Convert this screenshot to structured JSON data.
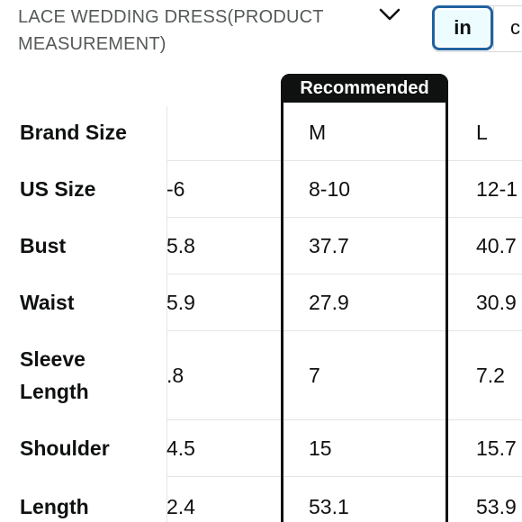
{
  "header": {
    "title": "LACE WEDDING DRESS(PRODUCT MEASUREMENT)",
    "dropdown_icon": "chevron-down-icon"
  },
  "unit_toggle": {
    "options": [
      {
        "label": "in",
        "selected": true
      },
      {
        "label": "c",
        "selected": false
      }
    ]
  },
  "table": {
    "recommended_label": "Recommended",
    "rows": [
      {
        "label": "Brand Size",
        "cells": [
          "",
          "M",
          "L"
        ]
      },
      {
        "label": "US Size",
        "cells": [
          "-6",
          "8-10",
          "12-1"
        ]
      },
      {
        "label": "Bust",
        "cells": [
          "5.8",
          "37.7",
          "40.7"
        ]
      },
      {
        "label": "Waist",
        "cells": [
          "5.9",
          "27.9",
          "30.9"
        ]
      },
      {
        "label": "Sleeve Length",
        "cells": [
          ".8",
          "7",
          "7.2"
        ]
      },
      {
        "label": "Shoulder",
        "cells": [
          "4.5",
          "15",
          "15.7"
        ]
      },
      {
        "label": "Length",
        "cells": [
          "2.4",
          "53.1",
          "53.9"
        ]
      }
    ]
  },
  "colors": {
    "text": "#0f1111",
    "muted": "#565959",
    "accent": "#2162a1",
    "grid": "#e3e6e6"
  }
}
